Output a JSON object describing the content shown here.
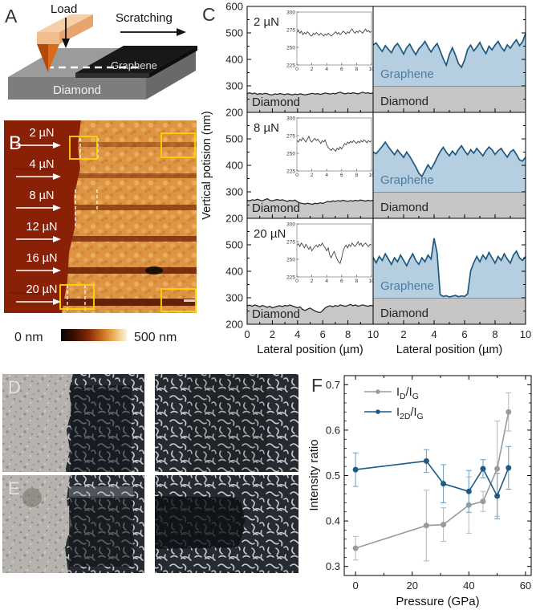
{
  "figure": {
    "panel_a": {
      "label": "A",
      "load_label": "Load",
      "scratch_label": "Scratching",
      "graphene_label": "Graphene",
      "diamond_label": "Diamond"
    },
    "panel_b": {
      "label": "B",
      "loads": [
        "2 µN",
        "4 µN",
        "8 µN",
        "12 µN",
        "16 µN",
        "20 µN"
      ],
      "scalebar": {
        "min": "0 nm",
        "max": "500 nm"
      }
    },
    "panel_c": {
      "label": "C"
    },
    "panel_d": {
      "label": "D"
    },
    "panel_e": {
      "label": "E"
    },
    "panel_f": {
      "label": "F"
    }
  },
  "chart_data": [
    {
      "type": "line",
      "name": "scratch_profiles",
      "panel": "C",
      "ylabel": "Vertical potision (nm)",
      "xlabel": "Lateral position (µm)",
      "ylim": [
        200,
        600
      ],
      "yticks": [
        200,
        300,
        400,
        500,
        600
      ],
      "xlim": [
        0,
        10
      ],
      "xticks": [
        0,
        2,
        4,
        6,
        8,
        10
      ],
      "diamond_label": "Diamond",
      "graphene_label": "Graphene",
      "graphene_base": 300,
      "inset": {
        "ylim": [
          225,
          300
        ],
        "yticks": [
          225,
          250,
          275,
          300
        ],
        "xticks": [
          0,
          2,
          4,
          6,
          8,
          10
        ]
      },
      "rows": [
        {
          "load": "2 µN",
          "diamond_profile": [
            271,
            274,
            270,
            273,
            268,
            271,
            269,
            272,
            270,
            267,
            266,
            270,
            268,
            271,
            269,
            267,
            270,
            268,
            266,
            269,
            267,
            270,
            268,
            266,
            268,
            270,
            272,
            269,
            271,
            268,
            270,
            273,
            271,
            269,
            272,
            270,
            274,
            276,
            272,
            270,
            273,
            271,
            274,
            272,
            270,
            273,
            276,
            272,
            274,
            271,
            273
          ],
          "graphene_profile": [
            455,
            462,
            445,
            430,
            452,
            438,
            425,
            448,
            460,
            442,
            420,
            444,
            458,
            436,
            418,
            440,
            452,
            468,
            446,
            428,
            446,
            460,
            432,
            402,
            378,
            418,
            444,
            416,
            384,
            370,
            398,
            438,
            454,
            432,
            446,
            464,
            440,
            422,
            450,
            436,
            454,
            468,
            446,
            432,
            455,
            442,
            460,
            474,
            452,
            466,
            498
          ]
        },
        {
          "load": "8 µN",
          "diamond_profile": [
            268,
            266,
            270,
            268,
            272,
            269,
            266,
            270,
            274,
            268,
            266,
            269,
            271,
            268,
            270,
            267,
            264,
            268,
            266,
            269,
            262,
            258,
            256,
            254,
            257,
            255,
            253,
            257,
            255,
            259,
            256,
            260,
            264,
            262,
            266,
            264,
            267,
            265,
            268,
            266,
            264,
            267,
            265,
            268,
            266,
            269,
            267,
            265,
            268,
            266,
            268
          ],
          "graphene_profile": [
            450,
            444,
            458,
            472,
            488,
            470,
            455,
            440,
            458,
            444,
            430,
            450,
            434,
            414,
            394,
            370,
            358,
            380,
            402,
            386,
            406,
            430,
            452,
            468,
            450,
            436,
            454,
            440,
            460,
            474,
            455,
            440,
            459,
            446,
            464,
            450,
            436,
            455,
            469,
            459,
            441,
            455,
            464,
            446,
            431,
            450,
            459,
            441,
            421,
            416,
            431
          ]
        },
        {
          "load": "20 µN",
          "diamond_profile": [
            270,
            272,
            268,
            273,
            270,
            266,
            271,
            268,
            264,
            268,
            262,
            265,
            268,
            270,
            267,
            271,
            269,
            273,
            269,
            266,
            262,
            266,
            256,
            252,
            257,
            261,
            255,
            250,
            246,
            244,
            252,
            262,
            267,
            270,
            266,
            271,
            268,
            273,
            270,
            268,
            271,
            275,
            270,
            273,
            268,
            271,
            273,
            270,
            268,
            271,
            270
          ],
          "graphene_profile": [
            452,
            432,
            456,
            441,
            466,
            446,
            426,
            451,
            436,
            461,
            441,
            421,
            446,
            466,
            441,
            426,
            451,
            436,
            461,
            446,
            525,
            468,
            312,
            305,
            308,
            303,
            306,
            309,
            304,
            307,
            305,
            315,
            402,
            432,
            456,
            436,
            461,
            446,
            471,
            451,
            431,
            456,
            441,
            466,
            446,
            431,
            461,
            476,
            451,
            441,
            456
          ]
        }
      ]
    },
    {
      "type": "scatter",
      "name": "raman_intensity_ratio",
      "panel": "F",
      "xlabel": "Pressure (GPa)",
      "ylabel": "Intensity ratio",
      "xlim": [
        -4,
        62
      ],
      "xticks": [
        0,
        20,
        40,
        60
      ],
      "xminor": [
        10,
        30,
        50
      ],
      "ylim": [
        0.28,
        0.72
      ],
      "yticks": [
        0.3,
        0.4,
        0.5,
        0.6,
        0.7
      ],
      "legend_position": "top-left",
      "series": [
        {
          "name": "ID/IG",
          "label_parts": [
            [
              "I",
              0
            ],
            [
              "D",
              1
            ],
            [
              "/I",
              0
            ],
            [
              "G",
              1
            ]
          ],
          "color": "#9a9a9a",
          "err_color": "#bdbdbd",
          "x": [
            0,
            25,
            31,
            40,
            45,
            50,
            54
          ],
          "y": [
            0.34,
            0.39,
            0.392,
            0.435,
            0.443,
            0.515,
            0.64
          ],
          "err": [
            0.026,
            0.078,
            0.037,
            0.062,
            0.022,
            0.105,
            0.042
          ]
        },
        {
          "name": "I2D/IG",
          "label_parts": [
            [
              "I",
              0
            ],
            [
              "2D",
              1
            ],
            [
              "/I",
              0
            ],
            [
              "G",
              1
            ]
          ],
          "color": "#1d5a85",
          "err_color": "#79a5c4",
          "x": [
            0,
            25,
            31,
            40,
            45,
            50,
            54
          ],
          "y": [
            0.513,
            0.532,
            0.482,
            0.465,
            0.515,
            0.455,
            0.517
          ],
          "err": [
            0.037,
            0.025,
            0.042,
            0.046,
            0.02,
            0.05,
            0.047
          ]
        }
      ]
    }
  ]
}
